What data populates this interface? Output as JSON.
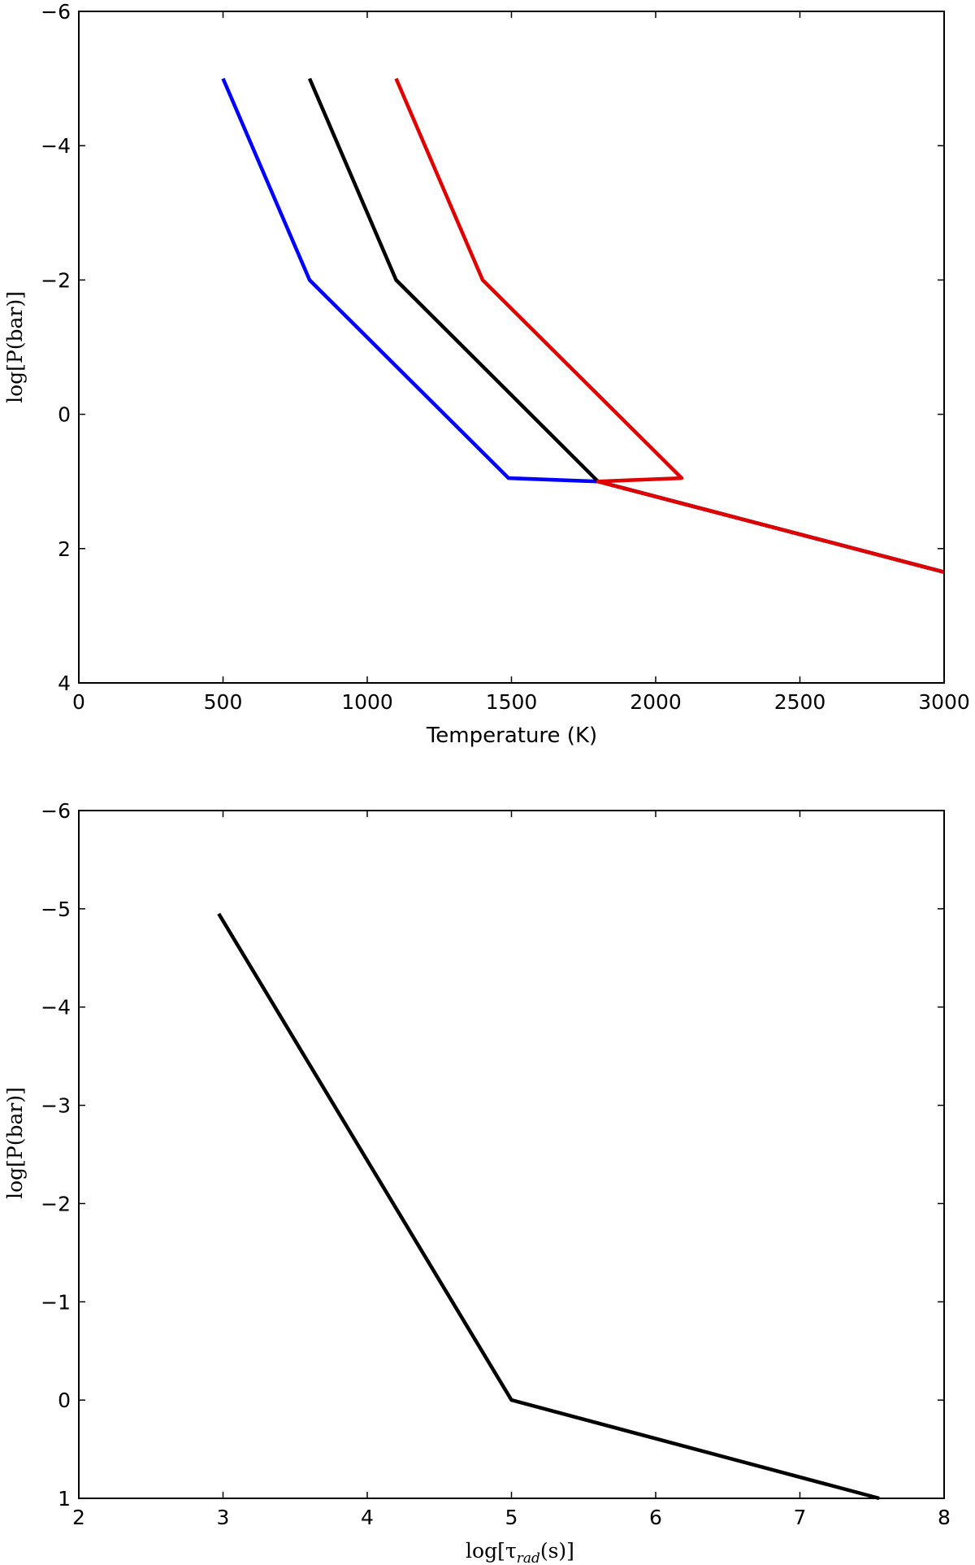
{
  "chart_data": [
    {
      "type": "line",
      "title": "",
      "xlabel": "Temperature (K)",
      "ylabel": "log[P(bar)]",
      "xlim": [
        0,
        3000
      ],
      "ylim": [
        4,
        -6
      ],
      "y_inverted": true,
      "xticks": [
        0,
        500,
        1000,
        1500,
        2000,
        2500,
        3000
      ],
      "xtick_labels": [
        "0",
        "500",
        "1000",
        "1500",
        "2000",
        "2500",
        "3000"
      ],
      "yticks": [
        -6,
        -4,
        -2,
        0,
        2,
        4
      ],
      "ytick_labels": [
        "−6",
        "−4",
        "−2",
        "0",
        "2",
        "4"
      ],
      "grid": false,
      "series": [
        {
          "name": "blue",
          "color": "#0000ff",
          "x": [
            500,
            800,
            1490,
            1800,
            3000
          ],
          "y": [
            -5,
            -2,
            0.95,
            1.0,
            2.35
          ]
        },
        {
          "name": "black",
          "color": "#000000",
          "x": [
            800,
            1100,
            1800,
            3000
          ],
          "y": [
            -5,
            -2,
            1.0,
            2.35
          ]
        },
        {
          "name": "red",
          "color": "#e00000",
          "x": [
            1100,
            1400,
            2090,
            1800,
            3000
          ],
          "y": [
            -5,
            -2,
            0.95,
            1.0,
            2.35
          ]
        }
      ]
    },
    {
      "type": "line",
      "title": "",
      "xlabel": "log[τ_rad(s)]",
      "xlabel_main": "log[τ",
      "xlabel_sub": "rad",
      "xlabel_tail": "(s)]",
      "ylabel": "log[P(bar)]",
      "xlim": [
        2,
        8
      ],
      "ylim": [
        1,
        -6
      ],
      "y_inverted": true,
      "xticks": [
        2,
        3,
        4,
        5,
        6,
        7,
        8
      ],
      "xtick_labels": [
        "2",
        "3",
        "4",
        "5",
        "6",
        "7",
        "8"
      ],
      "yticks": [
        -6,
        -5,
        -4,
        -3,
        -2,
        -1,
        0,
        1
      ],
      "ytick_labels": [
        "−6",
        "−5",
        "−4",
        "−3",
        "−2",
        "−1",
        "0",
        "1"
      ],
      "grid": false,
      "series": [
        {
          "name": "tau_rad",
          "color": "#000000",
          "x": [
            2.97,
            5.0,
            7.55
          ],
          "y": [
            -4.95,
            0.0,
            1.0
          ]
        }
      ]
    }
  ]
}
